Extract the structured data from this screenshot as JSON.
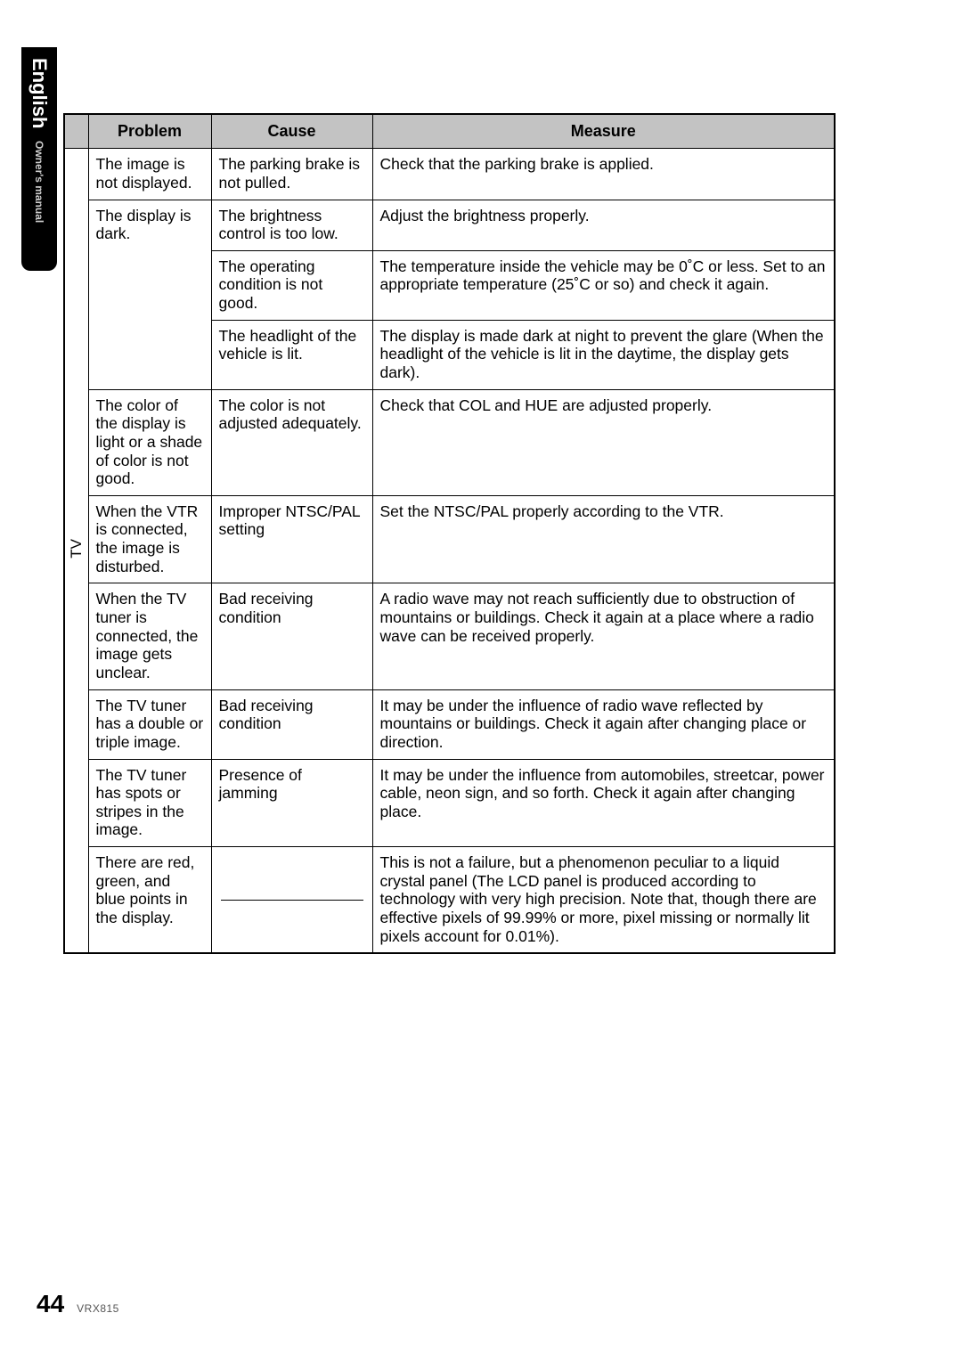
{
  "side_tab": {
    "language": "English",
    "subtitle": "Owner's manual"
  },
  "table": {
    "headers": {
      "problem": "Problem",
      "cause": "Cause",
      "measure": "Measure"
    },
    "category": "TV",
    "rows": [
      {
        "problem": "The image is not displayed.",
        "cause": "The parking brake is not pulled.",
        "measure": "Check that the parking brake is applied."
      },
      {
        "problem": "The display is dark.",
        "cause": "The brightness control is too low.",
        "measure": "Adjust the brightness properly."
      },
      {
        "problem": "",
        "cause": "The operating condition is not good.",
        "measure": "The temperature inside the vehicle may be 0˚C or less. Set to an appropriate temperature (25˚C or so) and check it again."
      },
      {
        "problem": "",
        "cause": "The headlight of the vehicle is lit.",
        "measure": "The display is made dark at night to prevent the glare (When the headlight of the vehicle is lit in the daytime, the display gets dark)."
      },
      {
        "problem": "The color of the display is light or a shade of color is not good.",
        "cause": "The color is not adjusted adequately.",
        "measure": "Check that COL and HUE are adjusted properly."
      },
      {
        "problem": "When the VTR is connected, the image is disturbed.",
        "cause": "Improper NTSC/PAL setting",
        "measure": "Set the NTSC/PAL properly according to the VTR."
      },
      {
        "problem": "When the TV tuner is connected, the image gets unclear.",
        "cause": "Bad receiving condition",
        "measure": "A radio wave may not reach sufficiently due to obstruction of mountains or buildings. Check it again at a place where a radio wave can be received properly."
      },
      {
        "problem": "The TV tuner has a double or triple image.",
        "cause": "Bad receiving condition",
        "measure": "It may be under the influence of radio wave reflected by mountains or buildings. Check it again after changing place or direction."
      },
      {
        "problem": "The TV tuner has spots or stripes in the image.",
        "cause": "Presence of jamming",
        "measure": "It may be under the influence from automobiles, streetcar, power cable, neon sign, and so forth. Check it again after changing place."
      },
      {
        "problem": "There are red, green, and blue points in the display.",
        "cause": "",
        "measure": "This is not a failure, but a phenomenon peculiar to a liquid crystal panel (The LCD panel is produced according to technology with very high precision. Note that, though there are effective pixels of 99.99% or more, pixel missing or normally lit pixels account for 0.01%)."
      }
    ]
  },
  "footer": {
    "page": "44",
    "model": "VRX815"
  },
  "colors": {
    "page_bg": "#ffffff",
    "tab_bg": "#000000",
    "tab_text": "#ffffff",
    "tab_sub": "#cfcfcf",
    "header_bg": "#c3c3c3",
    "border": "#000000",
    "text": "#000000",
    "model_text": "#555555"
  }
}
